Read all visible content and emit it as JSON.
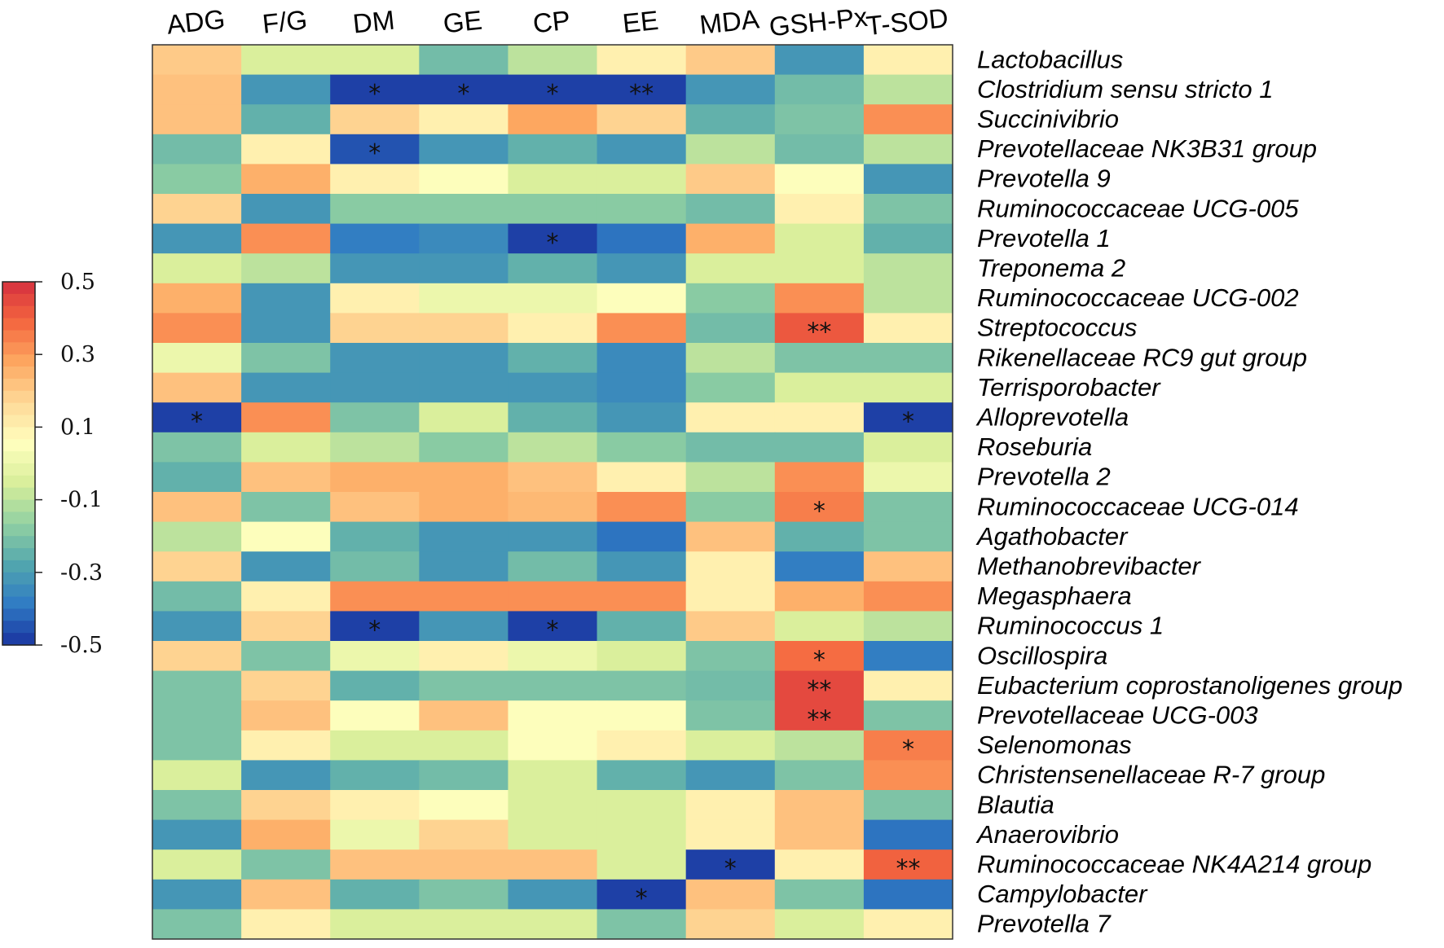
{
  "chart_data": {
    "type": "heatmap",
    "columns": [
      "ADG",
      "F/G",
      "DM",
      "GE",
      "CP",
      "EE",
      "MDA",
      "GSH-Px",
      "T-SOD"
    ],
    "rows": [
      "Lactobacillus",
      "Clostridium sensu stricto 1",
      "Succinivibrio",
      "Prevotellaceae NK3B31 group",
      "Prevotella 9",
      "Ruminococcaceae UCG-005",
      "Prevotella 1",
      "Treponema 2",
      "Ruminococcaceae UCG-002",
      "Streptococcus",
      "Rikenellaceae RC9 gut group",
      "Terrisporobacter",
      "Alloprevotella",
      "Roseburia",
      "Prevotella 2",
      "Ruminococcaceae UCG-014",
      "Agathobacter",
      "Methanobrevibacter",
      "Megasphaera",
      "Ruminococcus 1",
      "Oscillospira",
      "Eubacterium coprostanoligenes group",
      "Prevotellaceae UCG-003",
      "Selenomonas",
      "Christensenellaceae R-7 group",
      "Blautia",
      "Anaerovibrio",
      "Ruminococcaceae NK4A214 group",
      "Campylobacter",
      "Prevotella 7"
    ],
    "values": [
      [
        0.2,
        -0.05,
        -0.05,
        -0.22,
        -0.1,
        0.1,
        0.2,
        -0.32,
        0.1
      ],
      [
        0.22,
        -0.32,
        -0.48,
        -0.48,
        -0.48,
        -0.48,
        -0.32,
        -0.22,
        -0.1
      ],
      [
        0.22,
        -0.25,
        0.18,
        0.1,
        0.28,
        0.18,
        -0.25,
        -0.2,
        0.32
      ],
      [
        -0.22,
        0.1,
        -0.45,
        -0.32,
        -0.25,
        -0.32,
        -0.1,
        -0.22,
        -0.1
      ],
      [
        -0.18,
        0.26,
        0.1,
        0.05,
        -0.05,
        -0.05,
        0.2,
        0.05,
        -0.32
      ],
      [
        0.18,
        -0.32,
        -0.18,
        -0.18,
        -0.18,
        -0.18,
        -0.22,
        0.1,
        -0.2
      ],
      [
        -0.32,
        0.32,
        -0.38,
        -0.35,
        -0.48,
        -0.4,
        0.26,
        -0.05,
        -0.25
      ],
      [
        -0.05,
        -0.1,
        -0.32,
        -0.32,
        -0.25,
        -0.32,
        -0.05,
        -0.05,
        -0.1
      ],
      [
        0.26,
        -0.32,
        0.1,
        0.0,
        0.0,
        0.05,
        -0.18,
        0.32,
        -0.1
      ],
      [
        0.32,
        -0.32,
        0.18,
        0.18,
        0.1,
        0.32,
        -0.22,
        0.42,
        0.1
      ],
      [
        0.0,
        -0.2,
        -0.32,
        -0.32,
        -0.25,
        -0.35,
        -0.1,
        -0.2,
        -0.2
      ],
      [
        0.22,
        -0.32,
        -0.32,
        -0.32,
        -0.32,
        -0.35,
        -0.18,
        -0.05,
        -0.05
      ],
      [
        -0.48,
        0.32,
        -0.2,
        -0.05,
        -0.25,
        -0.32,
        0.1,
        0.1,
        -0.48
      ],
      [
        -0.2,
        -0.05,
        -0.1,
        -0.18,
        -0.1,
        -0.18,
        -0.22,
        -0.22,
        -0.05
      ],
      [
        -0.25,
        0.22,
        0.26,
        0.26,
        0.22,
        0.1,
        -0.1,
        0.32,
        0.0
      ],
      [
        0.22,
        -0.2,
        0.22,
        0.26,
        0.24,
        0.32,
        -0.18,
        0.35,
        -0.2
      ],
      [
        -0.1,
        0.05,
        -0.25,
        -0.32,
        -0.32,
        -0.4,
        0.22,
        -0.25,
        -0.2
      ],
      [
        0.18,
        -0.32,
        -0.22,
        -0.32,
        -0.22,
        -0.32,
        0.1,
        -0.38,
        0.22
      ],
      [
        -0.22,
        0.1,
        0.32,
        0.32,
        0.32,
        0.32,
        0.1,
        0.26,
        0.32
      ],
      [
        -0.32,
        0.18,
        -0.48,
        -0.32,
        -0.48,
        -0.25,
        0.2,
        -0.05,
        -0.1
      ],
      [
        0.18,
        -0.2,
        0.0,
        0.1,
        0.0,
        -0.05,
        -0.2,
        0.38,
        -0.38
      ],
      [
        -0.2,
        0.18,
        -0.25,
        -0.2,
        -0.2,
        -0.2,
        -0.22,
        0.45,
        0.1
      ],
      [
        -0.2,
        0.22,
        0.05,
        0.22,
        0.05,
        0.05,
        -0.2,
        0.45,
        -0.2
      ],
      [
        -0.2,
        0.1,
        -0.05,
        -0.05,
        0.05,
        0.1,
        -0.05,
        -0.1,
        0.35
      ],
      [
        -0.05,
        -0.32,
        -0.25,
        -0.22,
        -0.05,
        -0.25,
        -0.32,
        -0.2,
        0.32
      ],
      [
        -0.2,
        0.18,
        0.1,
        0.05,
        -0.05,
        -0.05,
        0.1,
        0.22,
        -0.2
      ],
      [
        -0.32,
        0.26,
        0.0,
        0.18,
        -0.05,
        -0.05,
        0.1,
        0.22,
        -0.4
      ],
      [
        -0.05,
        -0.2,
        0.22,
        0.22,
        0.22,
        -0.05,
        -0.48,
        0.1,
        0.4
      ],
      [
        -0.32,
        0.22,
        -0.25,
        -0.2,
        -0.32,
        -0.48,
        0.22,
        -0.2,
        -0.4
      ],
      [
        -0.2,
        0.1,
        -0.05,
        -0.05,
        -0.05,
        -0.2,
        0.18,
        -0.05,
        0.1
      ]
    ],
    "significance": [
      [
        "",
        "",
        "",
        "",
        "",
        "",
        "",
        "",
        ""
      ],
      [
        "",
        "",
        "*",
        "*",
        "*",
        "**",
        "",
        "",
        ""
      ],
      [
        "",
        "",
        "",
        "",
        "",
        "",
        "",
        "",
        ""
      ],
      [
        "",
        "",
        "*",
        "",
        "",
        "",
        "",
        "",
        ""
      ],
      [
        "",
        "",
        "",
        "",
        "",
        "",
        "",
        "",
        ""
      ],
      [
        "",
        "",
        "",
        "",
        "",
        "",
        "",
        "",
        ""
      ],
      [
        "",
        "",
        "",
        "",
        "*",
        "",
        "",
        "",
        ""
      ],
      [
        "",
        "",
        "",
        "",
        "",
        "",
        "",
        "",
        ""
      ],
      [
        "",
        "",
        "",
        "",
        "",
        "",
        "",
        "",
        ""
      ],
      [
        "",
        "",
        "",
        "",
        "",
        "",
        "",
        "**",
        ""
      ],
      [
        "",
        "",
        "",
        "",
        "",
        "",
        "",
        "",
        ""
      ],
      [
        "",
        "",
        "",
        "",
        "",
        "",
        "",
        "",
        ""
      ],
      [
        "*",
        "",
        "",
        "",
        "",
        "",
        "",
        "",
        "*"
      ],
      [
        "",
        "",
        "",
        "",
        "",
        "",
        "",
        "",
        ""
      ],
      [
        "",
        "",
        "",
        "",
        "",
        "",
        "",
        "",
        ""
      ],
      [
        "",
        "",
        "",
        "",
        "",
        "",
        "",
        "*",
        ""
      ],
      [
        "",
        "",
        "",
        "",
        "",
        "",
        "",
        "",
        ""
      ],
      [
        "",
        "",
        "",
        "",
        "",
        "",
        "",
        "",
        ""
      ],
      [
        "",
        "",
        "",
        "",
        "",
        "",
        "",
        "",
        ""
      ],
      [
        "",
        "",
        "*",
        "",
        "*",
        "",
        "",
        "",
        ""
      ],
      [
        "",
        "",
        "",
        "",
        "",
        "",
        "",
        "*",
        ""
      ],
      [
        "",
        "",
        "",
        "",
        "",
        "",
        "",
        "**",
        ""
      ],
      [
        "",
        "",
        "",
        "",
        "",
        "",
        "",
        "**",
        ""
      ],
      [
        "",
        "",
        "",
        "",
        "",
        "",
        "",
        "",
        "*"
      ],
      [
        "",
        "",
        "",
        "",
        "",
        "",
        "",
        "",
        ""
      ],
      [
        "",
        "",
        "",
        "",
        "",
        "",
        "",
        "",
        ""
      ],
      [
        "",
        "",
        "",
        "",
        "",
        "",
        "",
        "",
        ""
      ],
      [
        "",
        "",
        "",
        "",
        "",
        "",
        "*",
        "",
        "**"
      ],
      [
        "",
        "",
        "",
        "",
        "",
        "*",
        "",
        "",
        ""
      ],
      [
        "",
        "",
        "",
        "",
        "",
        "",
        "",
        "",
        ""
      ]
    ],
    "color_scale": {
      "min": -0.5,
      "max": 0.5,
      "ticks": [
        "0.5",
        "0.3",
        "0.1",
        "-0.1",
        "-0.3",
        "-0.5"
      ],
      "stops": [
        "#1a33a0",
        "#2f7bc4",
        "#52a6ae",
        "#91d0a2",
        "#d8ee9a",
        "#ffffbe",
        "#fed998",
        "#fda861",
        "#f4673f",
        "#d6303f"
      ]
    },
    "legend": "left"
  }
}
